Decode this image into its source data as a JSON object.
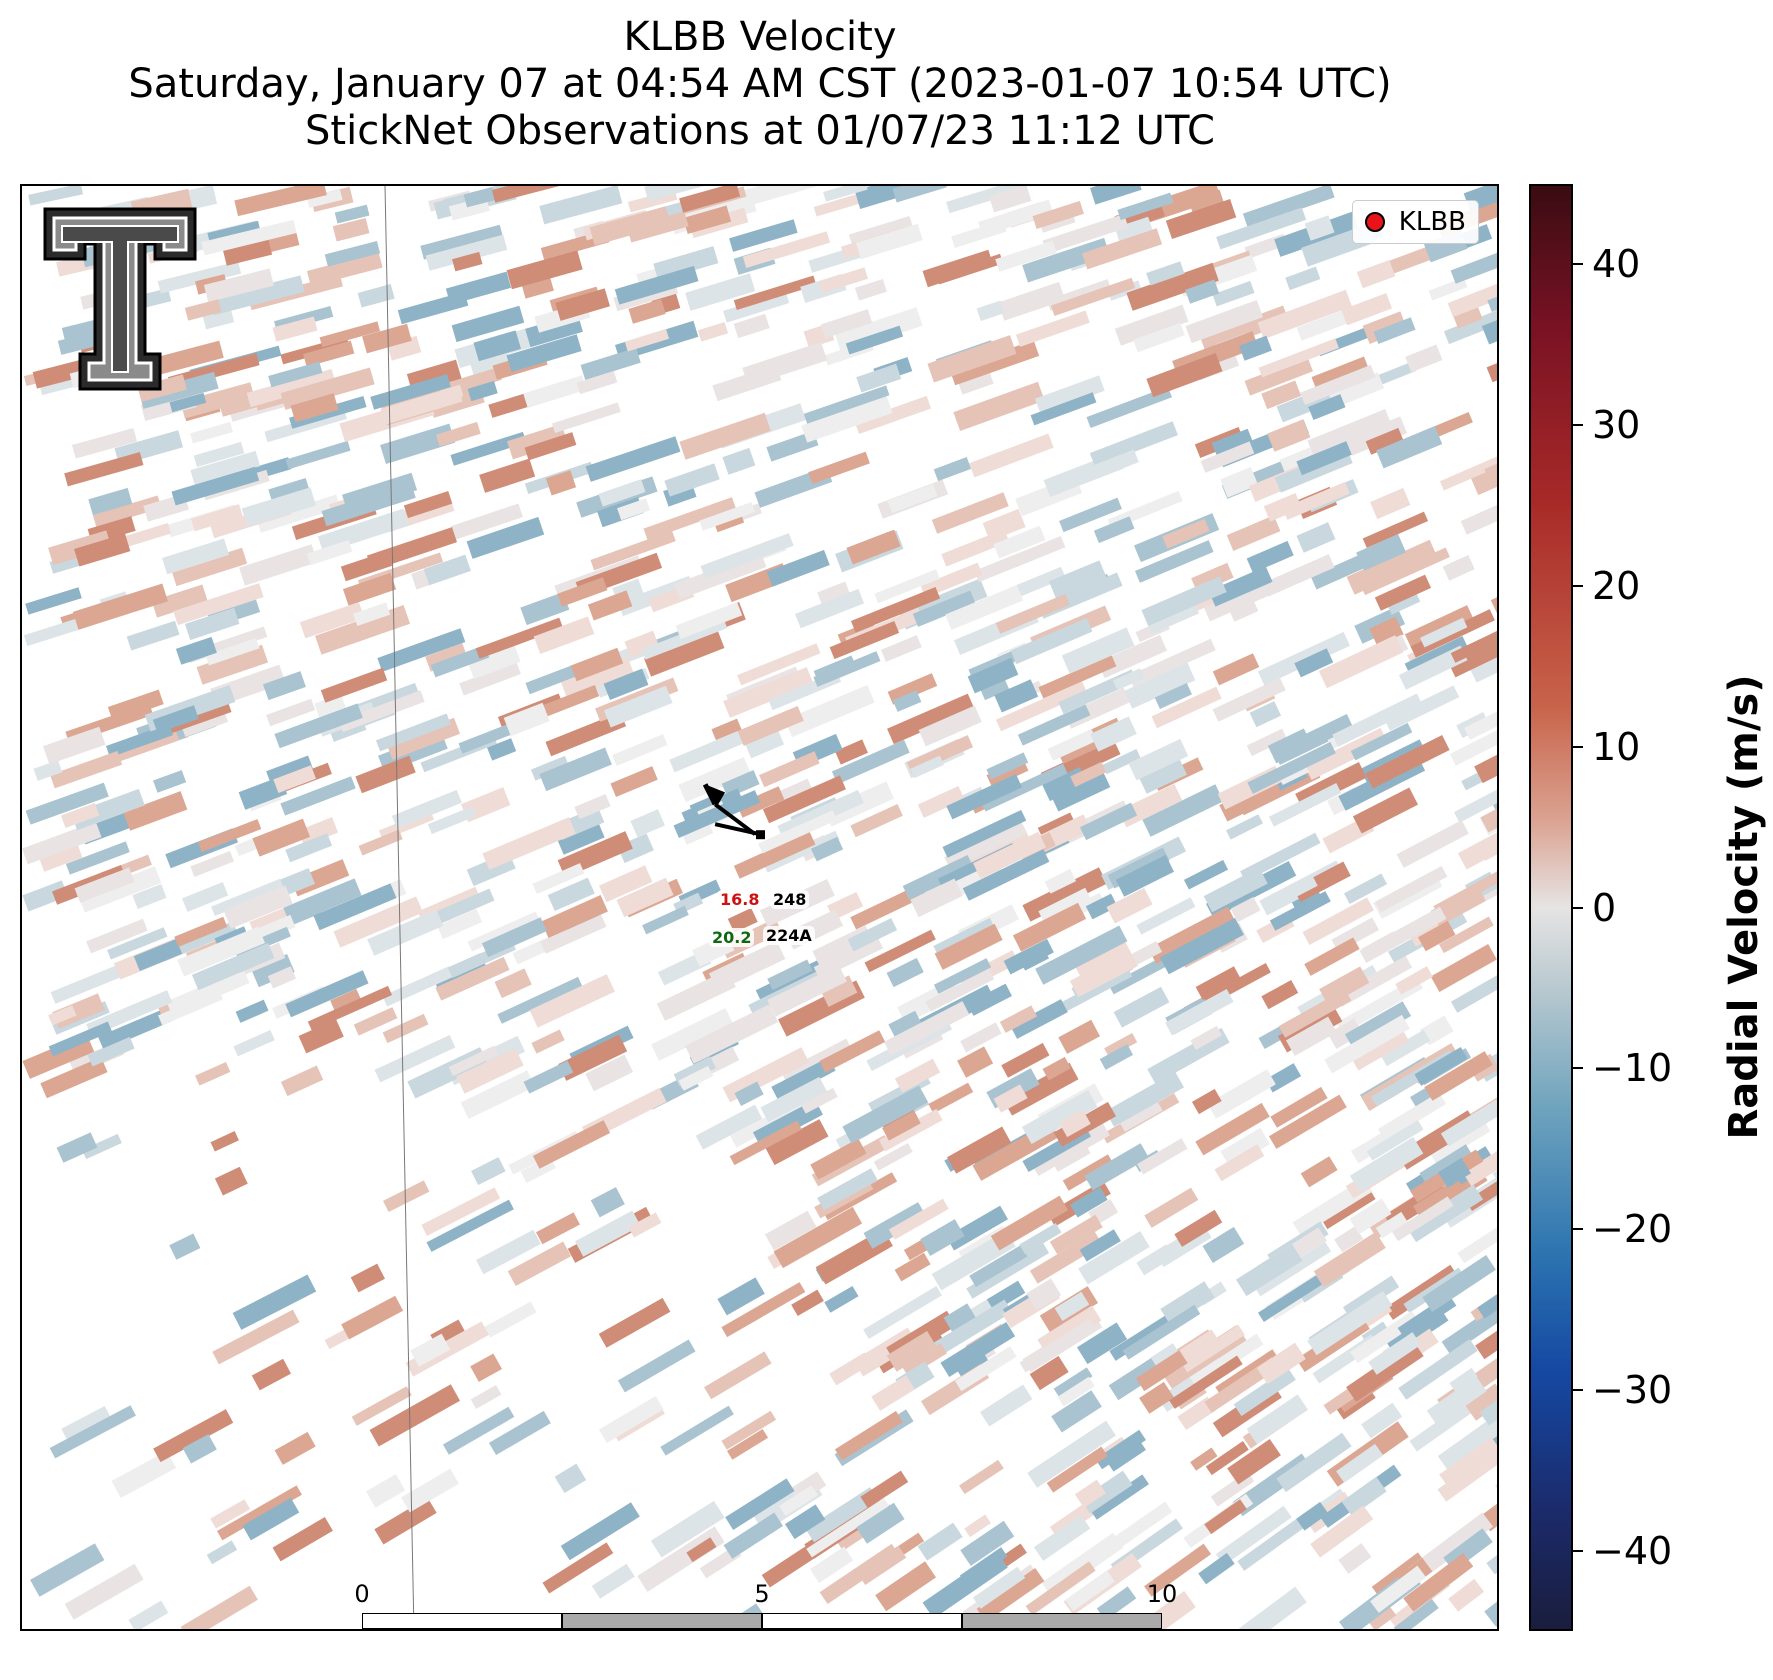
{
  "title": {
    "line1": "KLBB Velocity",
    "line2": "Saturday, January 07 at 04:54 AM CST (2023-01-07 10:54 UTC)",
    "line3": "StickNet Observations at 01/07/23 11:12 UTC"
  },
  "legend": {
    "label": "KLBB",
    "marker_color": "#e8141a"
  },
  "colorbar": {
    "title": "Radial Velocity (m/s)",
    "ticks": [
      {
        "value": 40,
        "label": "40"
      },
      {
        "value": 30,
        "label": "30"
      },
      {
        "value": 20,
        "label": "20"
      },
      {
        "value": 10,
        "label": "10"
      },
      {
        "value": 0,
        "label": "0"
      },
      {
        "value": -10,
        "label": "−10"
      },
      {
        "value": -20,
        "label": "−20"
      },
      {
        "value": -30,
        "label": "−30"
      },
      {
        "value": -40,
        "label": "−40"
      }
    ],
    "range": [
      -45,
      45
    ]
  },
  "scale_bar": {
    "ticks": [
      "0",
      "5",
      "10"
    ],
    "unit": "km"
  },
  "stations": [
    {
      "id": "248",
      "value": "16.8",
      "value_color": "#cc1111"
    },
    {
      "id": "224A",
      "value": "20.2",
      "value_color": "#116611"
    }
  ],
  "logo": {
    "icon": "texas-tech-double-t-logo"
  }
}
